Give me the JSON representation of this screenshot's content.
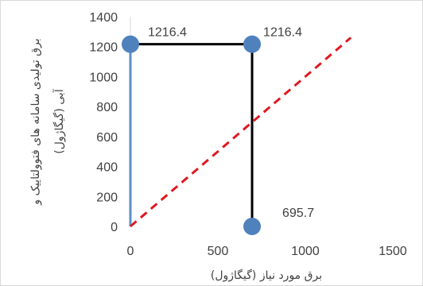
{
  "chart_data": {
    "type": "scatter",
    "xlabel": "برق مورد نیاز (گیگاژول)",
    "ylabel_lines": [
      "برق تولیدی سامانه های فتوولتاییک و",
      "آبی (گیگاژول)"
    ],
    "xlim": [
      0,
      1500
    ],
    "ylim": [
      0,
      1400
    ],
    "xticks": [
      0,
      500,
      1000,
      1500
    ],
    "yticks": [
      0,
      200,
      400,
      600,
      800,
      1000,
      1200,
      1400
    ],
    "grid": false,
    "legend": "none",
    "points": [
      {
        "x": 0,
        "y": 1216.4,
        "label": ""
      },
      {
        "x": 695.7,
        "y": 1216.4,
        "label": "1216.4"
      },
      {
        "x": 695.7,
        "y": 0,
        "label": "695.7"
      }
    ],
    "top_left_label": "1216.4",
    "series": [
      {
        "type": "line",
        "points": [
          [
            0,
            0
          ],
          [
            0,
            1216.4
          ]
        ],
        "color": "#5b8fc7",
        "style": "solid"
      },
      {
        "type": "line",
        "points": [
          [
            0,
            1216.4
          ],
          [
            695.7,
            1216.4
          ],
          [
            695.7,
            0
          ]
        ],
        "color": "#000000",
        "style": "solid"
      },
      {
        "type": "line",
        "points": [
          [
            0,
            0
          ],
          [
            1260,
            1260
          ]
        ],
        "color": "#e0191f",
        "style": "dashed"
      }
    ],
    "marker_color": "#4f81bd"
  }
}
